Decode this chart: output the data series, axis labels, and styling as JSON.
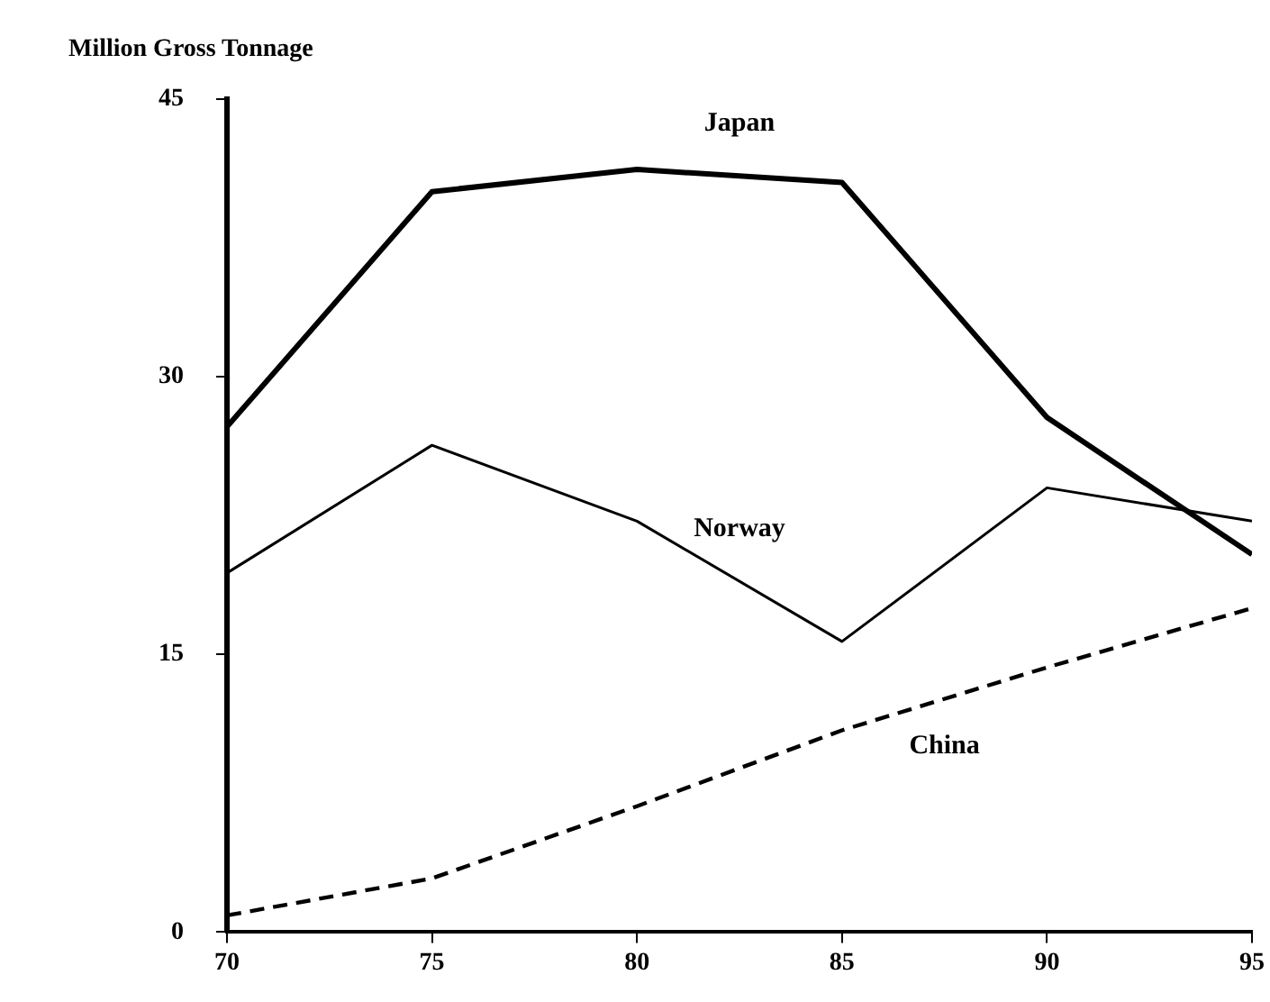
{
  "chart_data": {
    "type": "line",
    "ylabel": "Million Gross Tonnage",
    "x": [
      70,
      75,
      80,
      85,
      90,
      95
    ],
    "xlim": [
      70,
      95
    ],
    "xticks": [
      70,
      75,
      80,
      85,
      90,
      95
    ],
    "ylim": [
      0,
      45
    ],
    "yticks": [
      0,
      15,
      30,
      45
    ],
    "grid": false,
    "legend": false,
    "marker": "none",
    "series": [
      {
        "name": "Japan",
        "color": "#000000",
        "values": [
          27.3,
          40,
          41.2,
          40.5,
          27.8,
          20.4
        ],
        "line_style": "solid"
      },
      {
        "name": "Norway",
        "color": "#000000",
        "values": [
          19.4,
          26.3,
          22.2,
          15.7,
          24,
          22.2
        ],
        "line_style": "solid"
      },
      {
        "name": "China",
        "color": "#000000",
        "values": [
          0.9,
          2.9,
          6.8,
          10.9,
          14.3,
          17.5
        ],
        "line_style": "dashed"
      }
    ]
  }
}
